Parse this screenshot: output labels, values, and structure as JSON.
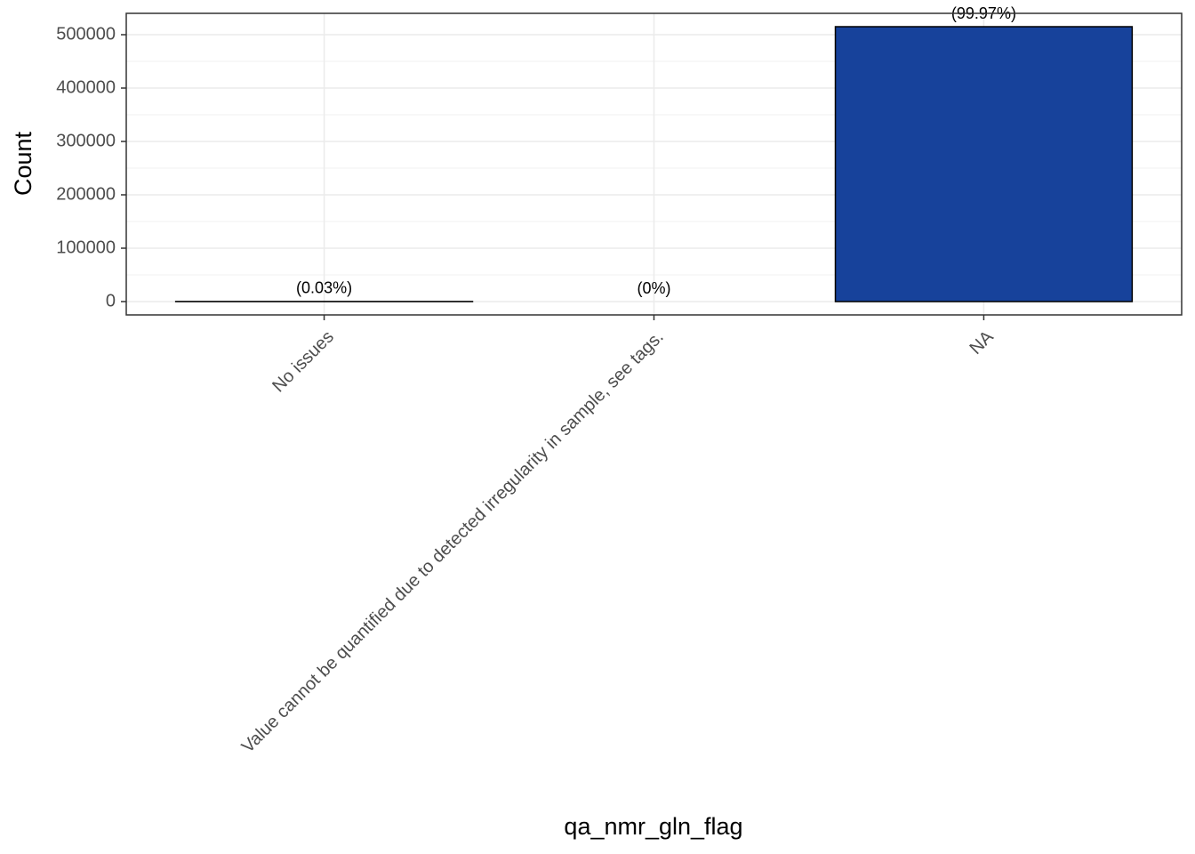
{
  "chart_data": {
    "type": "bar",
    "x_label": "qa_nmr_gln_flag",
    "y_label": "Count",
    "categories": [
      "No issues",
      "Value cannot be quantified due to detected irregularity in sample, see tags.",
      "NA"
    ],
    "values": [
      155,
      0,
      515000
    ],
    "bar_labels": [
      "(0.03%)",
      "(0%)",
      "(99.97%)"
    ],
    "color": "#17429b",
    "ylim": [
      -25000,
      540000
    ],
    "yticks": [
      0,
      100000,
      200000,
      300000,
      400000,
      500000
    ],
    "grid": true
  }
}
